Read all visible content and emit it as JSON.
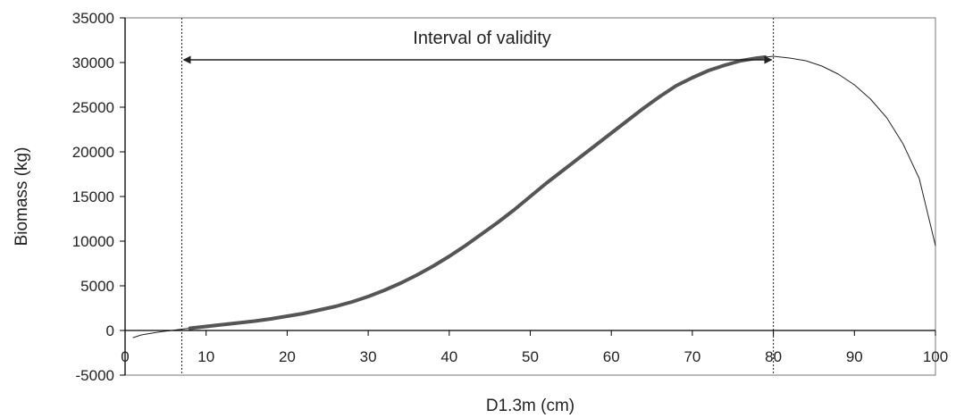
{
  "chart_data": {
    "type": "line",
    "title": "",
    "xlabel": "D1.3m (cm)",
    "ylabel": "Biomass (kg)",
    "xlim": [
      0,
      100
    ],
    "ylim": [
      -5000,
      35000
    ],
    "x_ticks": [
      0,
      10,
      20,
      30,
      40,
      50,
      60,
      70,
      80,
      90,
      100
    ],
    "y_ticks": [
      -5000,
      0,
      5000,
      10000,
      15000,
      20000,
      25000,
      30000,
      35000
    ],
    "grid": false,
    "series": [
      {
        "style": "thin",
        "x": [
          1,
          2,
          3,
          4,
          5,
          6,
          7,
          8,
          10,
          12,
          14,
          16,
          18,
          20,
          22,
          24,
          26,
          28,
          30,
          32,
          34,
          36,
          38,
          40,
          42,
          44,
          46,
          48,
          50,
          52,
          54,
          56,
          58,
          60,
          62,
          64,
          66,
          68,
          70,
          72,
          74,
          76,
          78,
          80,
          82,
          84,
          86,
          88,
          90,
          92,
          94,
          96,
          98,
          100
        ],
        "y": [
          -800,
          -500,
          -350,
          -200,
          -80,
          30,
          150,
          250,
          450,
          650,
          850,
          1050,
          1300,
          1600,
          1900,
          2300,
          2700,
          3200,
          3800,
          4500,
          5300,
          6200,
          7200,
          8300,
          9500,
          10800,
          12100,
          13500,
          15000,
          16500,
          17900,
          19300,
          20700,
          22100,
          23500,
          24900,
          26200,
          27400,
          28300,
          29100,
          29700,
          30200,
          30500,
          30700,
          30500,
          30200,
          29600,
          28700,
          27500,
          25900,
          23800,
          20900,
          17000,
          9500
        ]
      },
      {
        "style": "thick",
        "x": [
          8,
          10,
          12,
          14,
          16,
          18,
          20,
          22,
          24,
          26,
          28,
          30,
          32,
          34,
          36,
          38,
          40,
          42,
          44,
          46,
          48,
          50,
          52,
          54,
          56,
          58,
          60,
          62,
          64,
          66,
          68,
          70,
          72,
          74,
          76,
          78,
          79
        ],
        "y": [
          250,
          450,
          650,
          850,
          1050,
          1300,
          1600,
          1900,
          2300,
          2700,
          3200,
          3800,
          4500,
          5300,
          6200,
          7200,
          8300,
          9500,
          10800,
          12100,
          13500,
          15000,
          16500,
          17900,
          19300,
          20700,
          22100,
          23500,
          24900,
          26200,
          27400,
          28300,
          29100,
          29700,
          30200,
          30500,
          30600
        ]
      }
    ],
    "reference_lines_x": [
      7,
      80
    ],
    "annotation": {
      "text": "Interval of validity",
      "x_from": 7,
      "x_to": 80,
      "y": 30300
    }
  }
}
